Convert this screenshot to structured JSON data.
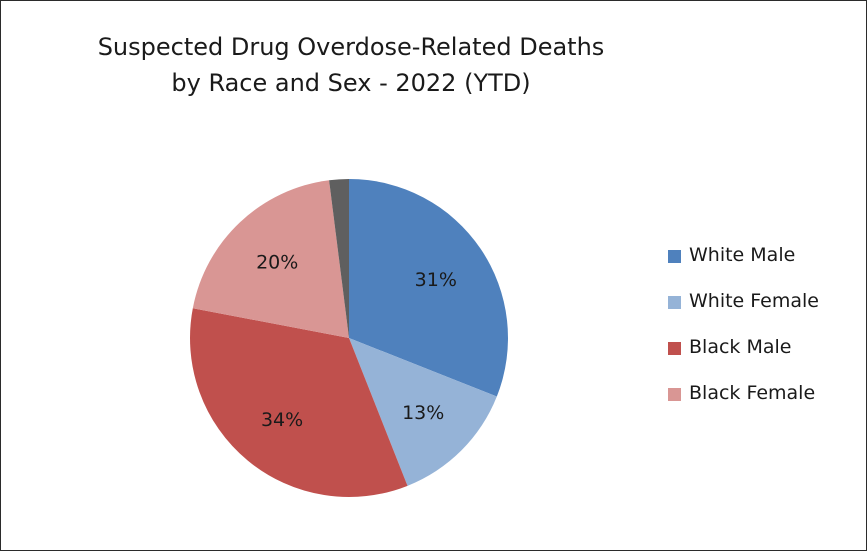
{
  "chart_data": {
    "type": "pie",
    "title_line1": "Suspected Drug Overdose-Related Deaths",
    "title_line2": "by Race and Sex - 2022 (YTD)",
    "slices": [
      {
        "name": "White Male",
        "value": 31,
        "label": "31%",
        "color": "#4f81bd"
      },
      {
        "name": "White Female",
        "value": 13,
        "label": "13%",
        "color": "#95b3d7"
      },
      {
        "name": "Black Male",
        "value": 34,
        "label": "34%",
        "color": "#c0504d"
      },
      {
        "name": "Black Female",
        "value": 20,
        "label": "20%",
        "color": "#d99694"
      },
      {
        "name": "",
        "value": 2,
        "label": "",
        "color": "#5f5f5f"
      }
    ],
    "legend": [
      {
        "label": "White Male",
        "color": "#4f81bd"
      },
      {
        "label": "White Female",
        "color": "#95b3d7"
      },
      {
        "label": "Black Male",
        "color": "#c0504d"
      },
      {
        "label": "Black Female",
        "color": "#d99694"
      }
    ],
    "legend_position": "right"
  }
}
